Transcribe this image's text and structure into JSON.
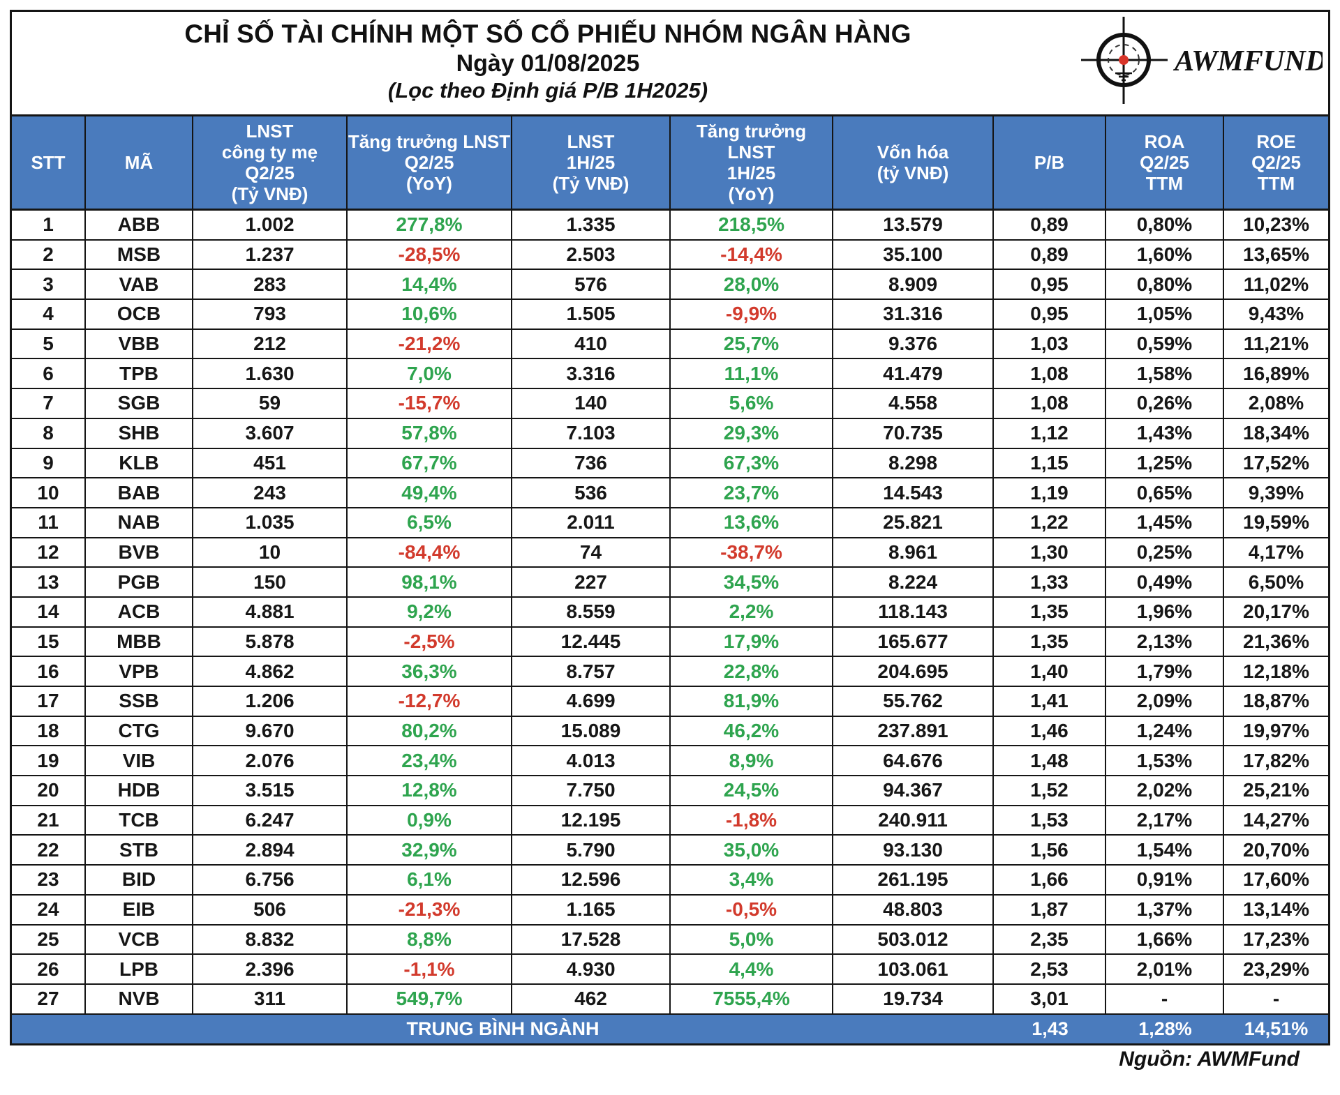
{
  "header": {
    "title": "CHỈ SỐ TÀI CHÍNH MỘT SỐ CỔ PHIẾU NHÓM NGÂN HÀNG",
    "date_line": "Ngày 01/08/2025",
    "subtitle": "(Lọc theo Định giá P/B 1H2025)",
    "logo_text": "AWMFUND"
  },
  "footer": {
    "source": "Nguồn: AWMFund"
  },
  "colors": {
    "header_blue": "#4A7BBD",
    "positive_green": "#2EA44E",
    "negative_red": "#D23A2C",
    "logo_dot_red": "#D8352A",
    "border_black": "#151515"
  },
  "chart_data": {
    "type": "table",
    "columns": [
      {
        "id": "stt",
        "lines": [
          "STT"
        ]
      },
      {
        "id": "ma",
        "lines": [
          "MÃ"
        ]
      },
      {
        "id": "lnst_q2",
        "lines": [
          "LNST",
          "công ty mẹ",
          "Q2/25",
          "(Tỷ VNĐ)"
        ]
      },
      {
        "id": "tt_q2",
        "lines": [
          "Tăng trưởng LNST",
          "Q2/25",
          "(YoY)"
        ]
      },
      {
        "id": "lnst_1h",
        "lines": [
          "LNST",
          "1H/25",
          "(Tỷ VNĐ)"
        ]
      },
      {
        "id": "tt_1h",
        "lines": [
          "Tăng trưởng LNST",
          "1H/25",
          "(YoY)"
        ]
      },
      {
        "id": "vonhoa",
        "lines": [
          "Vốn hóa",
          "(tỷ VNĐ)"
        ]
      },
      {
        "id": "pb",
        "lines": [
          "P/B"
        ]
      },
      {
        "id": "roa",
        "lines": [
          "ROA",
          "Q2/25",
          "TTM"
        ]
      },
      {
        "id": "roe",
        "lines": [
          "ROE",
          "Q2/25",
          "TTM"
        ]
      }
    ],
    "rows": [
      [
        "1",
        "ABB",
        "1.002",
        "277,8%",
        "1.335",
        "218,5%",
        "13.579",
        "0,89",
        "0,80%",
        "10,23%"
      ],
      [
        "2",
        "MSB",
        "1.237",
        "-28,5%",
        "2.503",
        "-14,4%",
        "35.100",
        "0,89",
        "1,60%",
        "13,65%"
      ],
      [
        "3",
        "VAB",
        "283",
        "14,4%",
        "576",
        "28,0%",
        "8.909",
        "0,95",
        "0,80%",
        "11,02%"
      ],
      [
        "4",
        "OCB",
        "793",
        "10,6%",
        "1.505",
        "-9,9%",
        "31.316",
        "0,95",
        "1,05%",
        "9,43%"
      ],
      [
        "5",
        "VBB",
        "212",
        "-21,2%",
        "410",
        "25,7%",
        "9.376",
        "1,03",
        "0,59%",
        "11,21%"
      ],
      [
        "6",
        "TPB",
        "1.630",
        "7,0%",
        "3.316",
        "11,1%",
        "41.479",
        "1,08",
        "1,58%",
        "16,89%"
      ],
      [
        "7",
        "SGB",
        "59",
        "-15,7%",
        "140",
        "5,6%",
        "4.558",
        "1,08",
        "0,26%",
        "2,08%"
      ],
      [
        "8",
        "SHB",
        "3.607",
        "57,8%",
        "7.103",
        "29,3%",
        "70.735",
        "1,12",
        "1,43%",
        "18,34%"
      ],
      [
        "9",
        "KLB",
        "451",
        "67,7%",
        "736",
        "67,3%",
        "8.298",
        "1,15",
        "1,25%",
        "17,52%"
      ],
      [
        "10",
        "BAB",
        "243",
        "49,4%",
        "536",
        "23,7%",
        "14.543",
        "1,19",
        "0,65%",
        "9,39%"
      ],
      [
        "11",
        "NAB",
        "1.035",
        "6,5%",
        "2.011",
        "13,6%",
        "25.821",
        "1,22",
        "1,45%",
        "19,59%"
      ],
      [
        "12",
        "BVB",
        "10",
        "-84,4%",
        "74",
        "-38,7%",
        "8.961",
        "1,30",
        "0,25%",
        "4,17%"
      ],
      [
        "13",
        "PGB",
        "150",
        "98,1%",
        "227",
        "34,5%",
        "8.224",
        "1,33",
        "0,49%",
        "6,50%"
      ],
      [
        "14",
        "ACB",
        "4.881",
        "9,2%",
        "8.559",
        "2,2%",
        "118.143",
        "1,35",
        "1,96%",
        "20,17%"
      ],
      [
        "15",
        "MBB",
        "5.878",
        "-2,5%",
        "12.445",
        "17,9%",
        "165.677",
        "1,35",
        "2,13%",
        "21,36%"
      ],
      [
        "16",
        "VPB",
        "4.862",
        "36,3%",
        "8.757",
        "22,8%",
        "204.695",
        "1,40",
        "1,79%",
        "12,18%"
      ],
      [
        "17",
        "SSB",
        "1.206",
        "-12,7%",
        "4.699",
        "81,9%",
        "55.762",
        "1,41",
        "2,09%",
        "18,87%"
      ],
      [
        "18",
        "CTG",
        "9.670",
        "80,2%",
        "15.089",
        "46,2%",
        "237.891",
        "1,46",
        "1,24%",
        "19,97%"
      ],
      [
        "19",
        "VIB",
        "2.076",
        "23,4%",
        "4.013",
        "8,9%",
        "64.676",
        "1,48",
        "1,53%",
        "17,82%"
      ],
      [
        "20",
        "HDB",
        "3.515",
        "12,8%",
        "7.750",
        "24,5%",
        "94.367",
        "1,52",
        "2,02%",
        "25,21%"
      ],
      [
        "21",
        "TCB",
        "6.247",
        "0,9%",
        "12.195",
        "-1,8%",
        "240.911",
        "1,53",
        "2,17%",
        "14,27%"
      ],
      [
        "22",
        "STB",
        "2.894",
        "32,9%",
        "5.790",
        "35,0%",
        "93.130",
        "1,56",
        "1,54%",
        "20,70%"
      ],
      [
        "23",
        "BID",
        "6.756",
        "6,1%",
        "12.596",
        "3,4%",
        "261.195",
        "1,66",
        "0,91%",
        "17,60%"
      ],
      [
        "24",
        "EIB",
        "506",
        "-21,3%",
        "1.165",
        "-0,5%",
        "48.803",
        "1,87",
        "1,37%",
        "13,14%"
      ],
      [
        "25",
        "VCB",
        "8.832",
        "8,8%",
        "17.528",
        "5,0%",
        "503.012",
        "2,35",
        "1,66%",
        "17,23%"
      ],
      [
        "26",
        "LPB",
        "2.396",
        "-1,1%",
        "4.930",
        "4,4%",
        "103.061",
        "2,53",
        "2,01%",
        "23,29%"
      ],
      [
        "27",
        "NVB",
        "311",
        "549,7%",
        "462",
        "7555,4%",
        "19.734",
        "3,01",
        "-",
        "-"
      ]
    ],
    "average": {
      "label": "TRUNG BÌNH NGÀNH",
      "pb": "1,43",
      "roa": "1,28%",
      "roe": "14,51%"
    }
  }
}
